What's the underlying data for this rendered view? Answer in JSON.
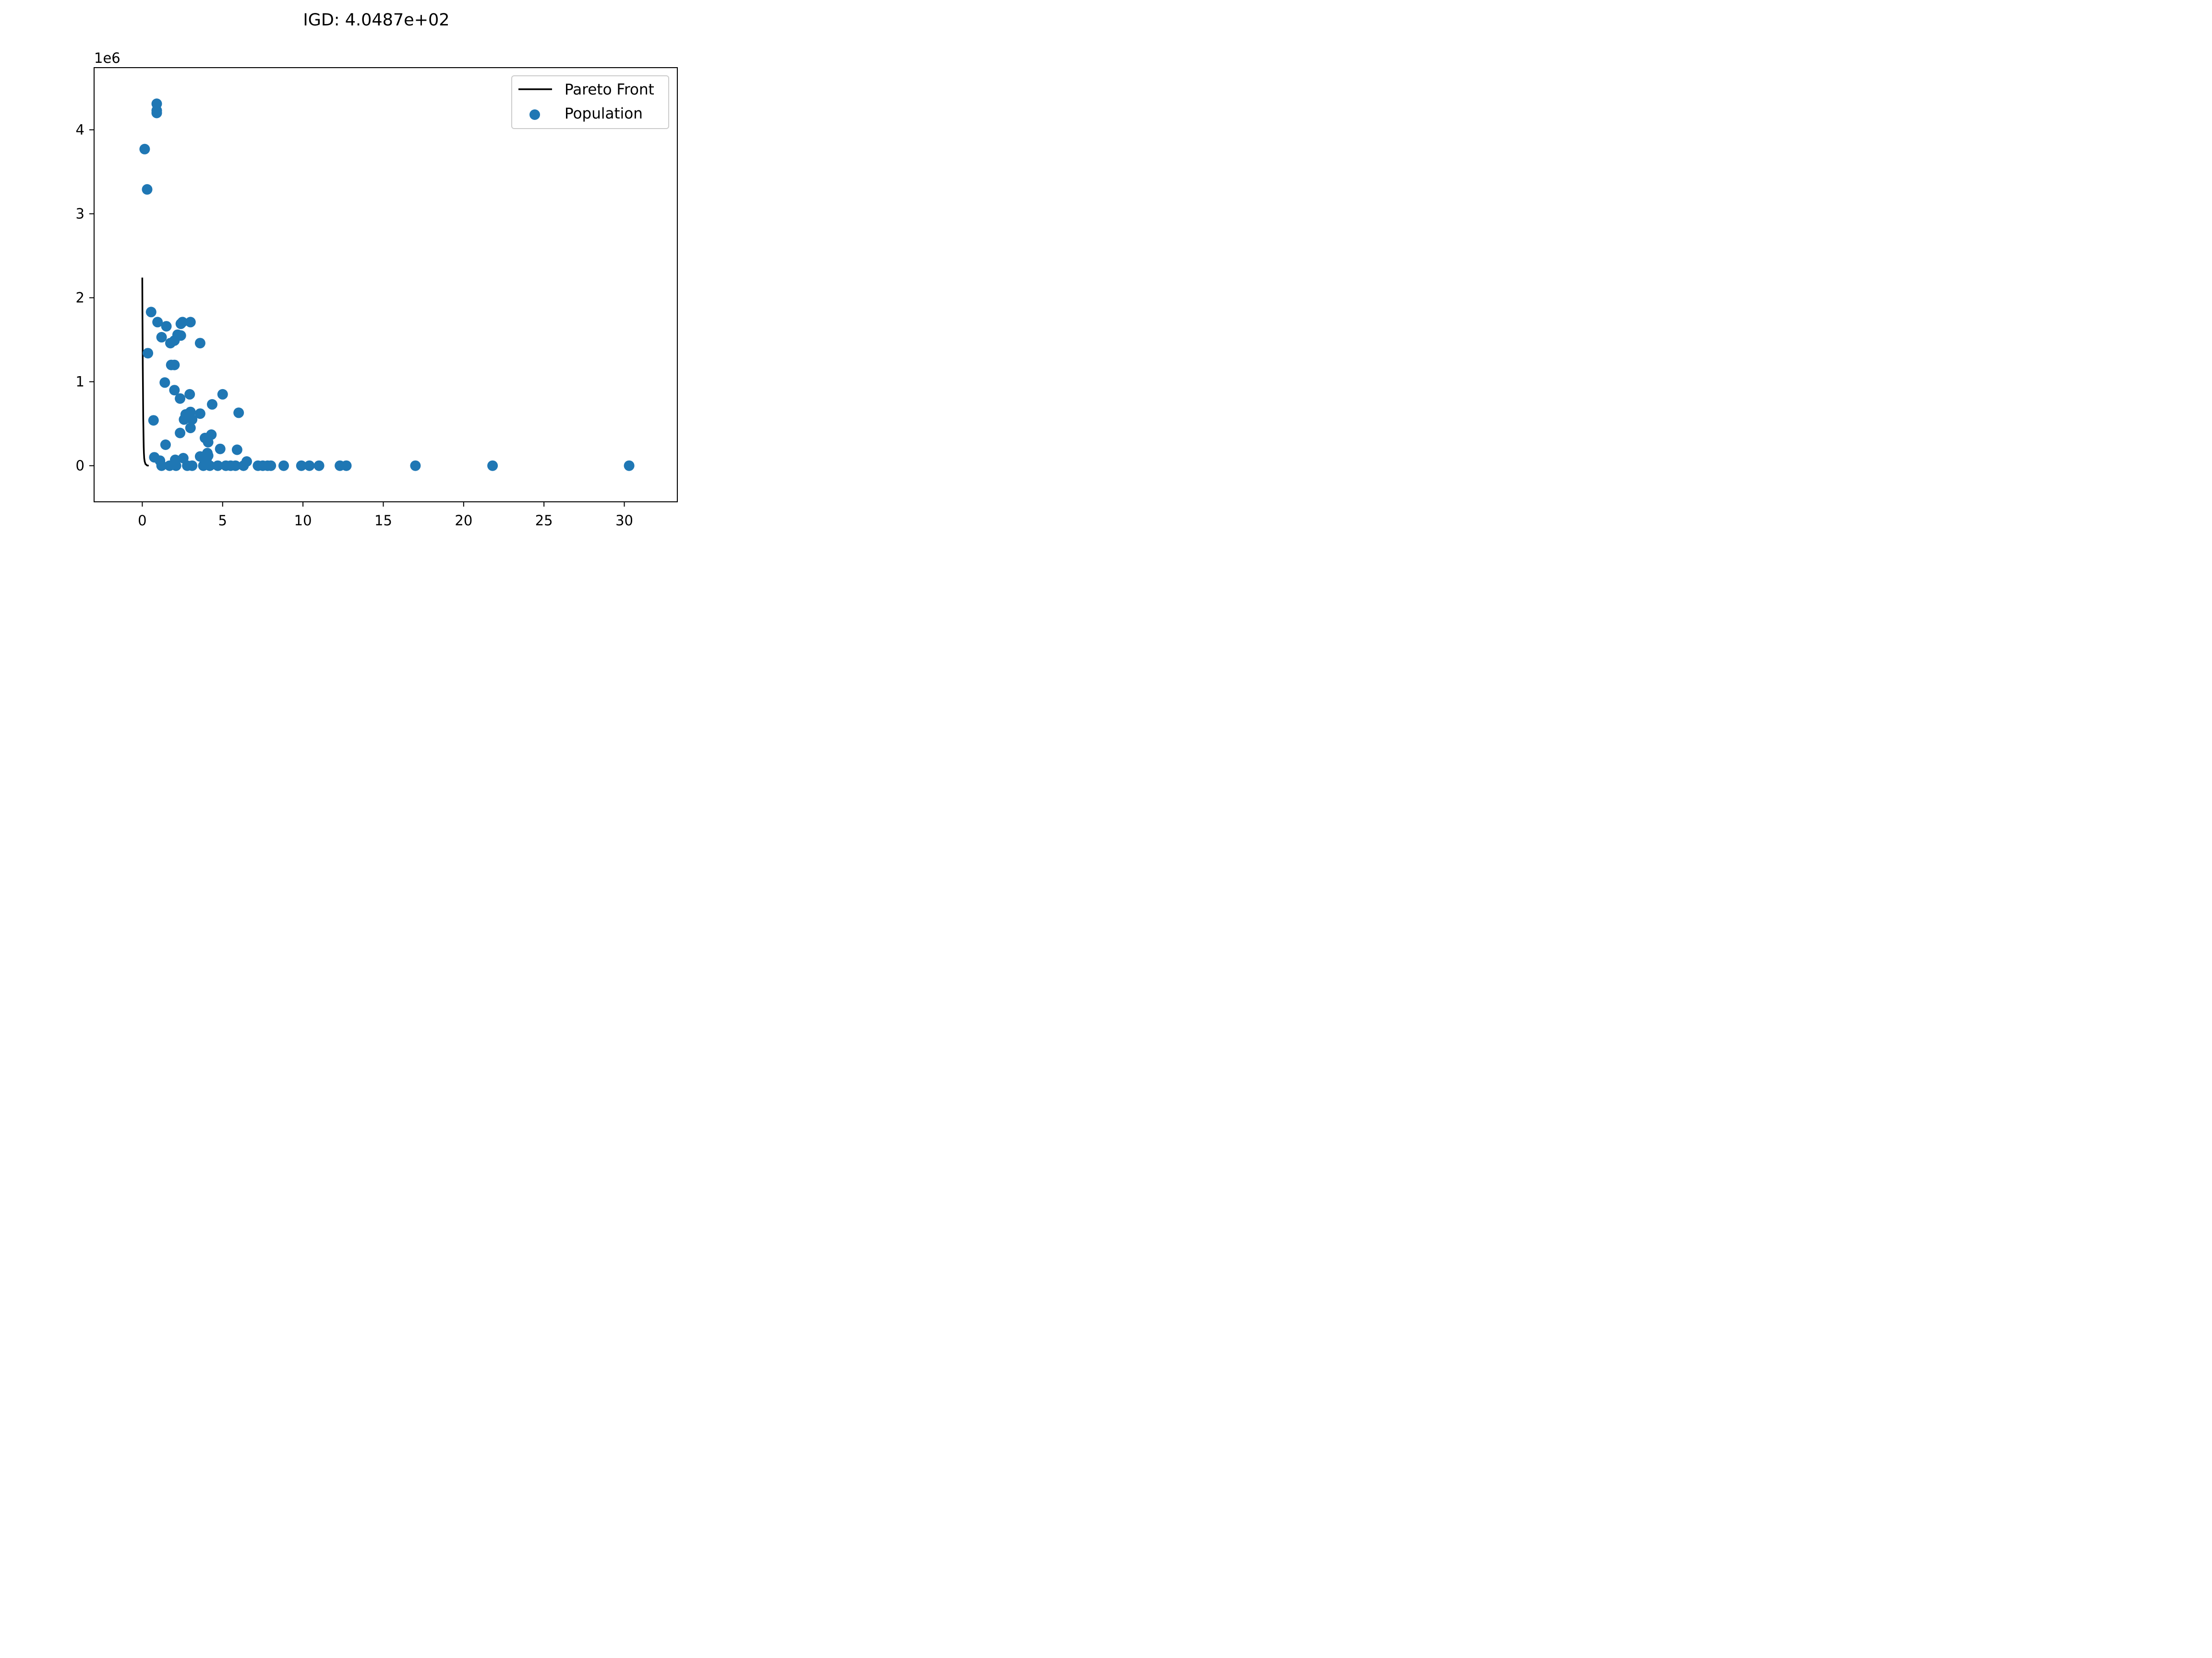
{
  "chart_data": {
    "type": "scatter",
    "title": "IGD: 4.0487e+02",
    "xlabel": "",
    "ylabel": "",
    "y_offset_label": "1e6",
    "xlim": [
      -3,
      33.3
    ],
    "ylim": [
      -0.43,
      4.74
    ],
    "x_ticks": [
      0,
      5,
      10,
      15,
      20,
      25,
      30
    ],
    "y_ticks": [
      0,
      1,
      2,
      3,
      4
    ],
    "x_tick_labels": [
      "0",
      "5",
      "10",
      "15",
      "20",
      "25",
      "30"
    ],
    "y_tick_labels": [
      "0",
      "1",
      "2",
      "3",
      "4"
    ],
    "grid": false,
    "legend": {
      "placement": "top-right",
      "entries": [
        "Pareto Front",
        "Population"
      ]
    },
    "series": [
      {
        "name": "Pareto Front",
        "kind": "line",
        "color": "#000000",
        "x": [
          0.0,
          0.01,
          0.02,
          0.03,
          0.04,
          0.05,
          0.06,
          0.07,
          0.08,
          0.09,
          0.1,
          0.12,
          0.15,
          0.2,
          0.3,
          0.4
        ],
        "y": [
          2.24,
          1.85,
          1.5,
          1.2,
          0.95,
          0.74,
          0.56,
          0.42,
          0.31,
          0.22,
          0.15,
          0.09,
          0.05,
          0.02,
          0.003,
          0.0
        ]
      },
      {
        "name": "Population",
        "kind": "scatter",
        "color": "#1f77b4",
        "x": [
          0.9,
          0.9,
          0.9,
          0.15,
          0.3,
          0.55,
          0.95,
          1.5,
          1.2,
          2.5,
          2.4,
          3.0,
          2.2,
          2.4,
          2.0,
          1.75,
          3.6,
          0.35,
          1.8,
          2.0,
          1.4,
          2.0,
          2.95,
          2.35,
          5.0,
          4.35,
          3.0,
          2.7,
          3.6,
          6.0,
          2.9,
          3.1,
          2.6,
          0.7,
          3.0,
          2.35,
          4.3,
          3.9,
          4.1,
          1.45,
          4.85,
          5.9,
          0.75,
          3.6,
          4.05,
          4.1,
          4.0,
          1.1,
          2.55,
          6.5,
          2.05,
          1.2,
          1.7,
          2.1,
          2.8,
          3.1,
          3.8,
          4.2,
          4.7,
          5.2,
          5.5,
          5.8,
          6.3,
          7.2,
          7.5,
          7.8,
          8.0,
          8.8,
          9.9,
          10.4,
          11.0,
          12.3,
          12.7,
          17.0,
          21.8,
          30.3
        ],
        "y": [
          4.31,
          4.23,
          4.2,
          3.77,
          3.29,
          1.83,
          1.71,
          1.66,
          1.53,
          1.71,
          1.69,
          1.71,
          1.56,
          1.55,
          1.49,
          1.46,
          1.46,
          1.34,
          1.2,
          1.2,
          0.99,
          0.9,
          0.85,
          0.8,
          0.85,
          0.73,
          0.64,
          0.61,
          0.62,
          0.63,
          0.6,
          0.55,
          0.55,
          0.54,
          0.45,
          0.39,
          0.37,
          0.33,
          0.28,
          0.25,
          0.2,
          0.19,
          0.1,
          0.11,
          0.15,
          0.12,
          0.08,
          0.06,
          0.09,
          0.05,
          0.07,
          0.0,
          0.0,
          0.0,
          0.0,
          0.0,
          0.0,
          0.0,
          0.0,
          0.0,
          0.0,
          0.0,
          0.0,
          0.0,
          0.0,
          0.0,
          0.0,
          0.0,
          0.0,
          0.0,
          0.0,
          0.0,
          0.0,
          0.0,
          0.0,
          0.0
        ]
      }
    ]
  }
}
